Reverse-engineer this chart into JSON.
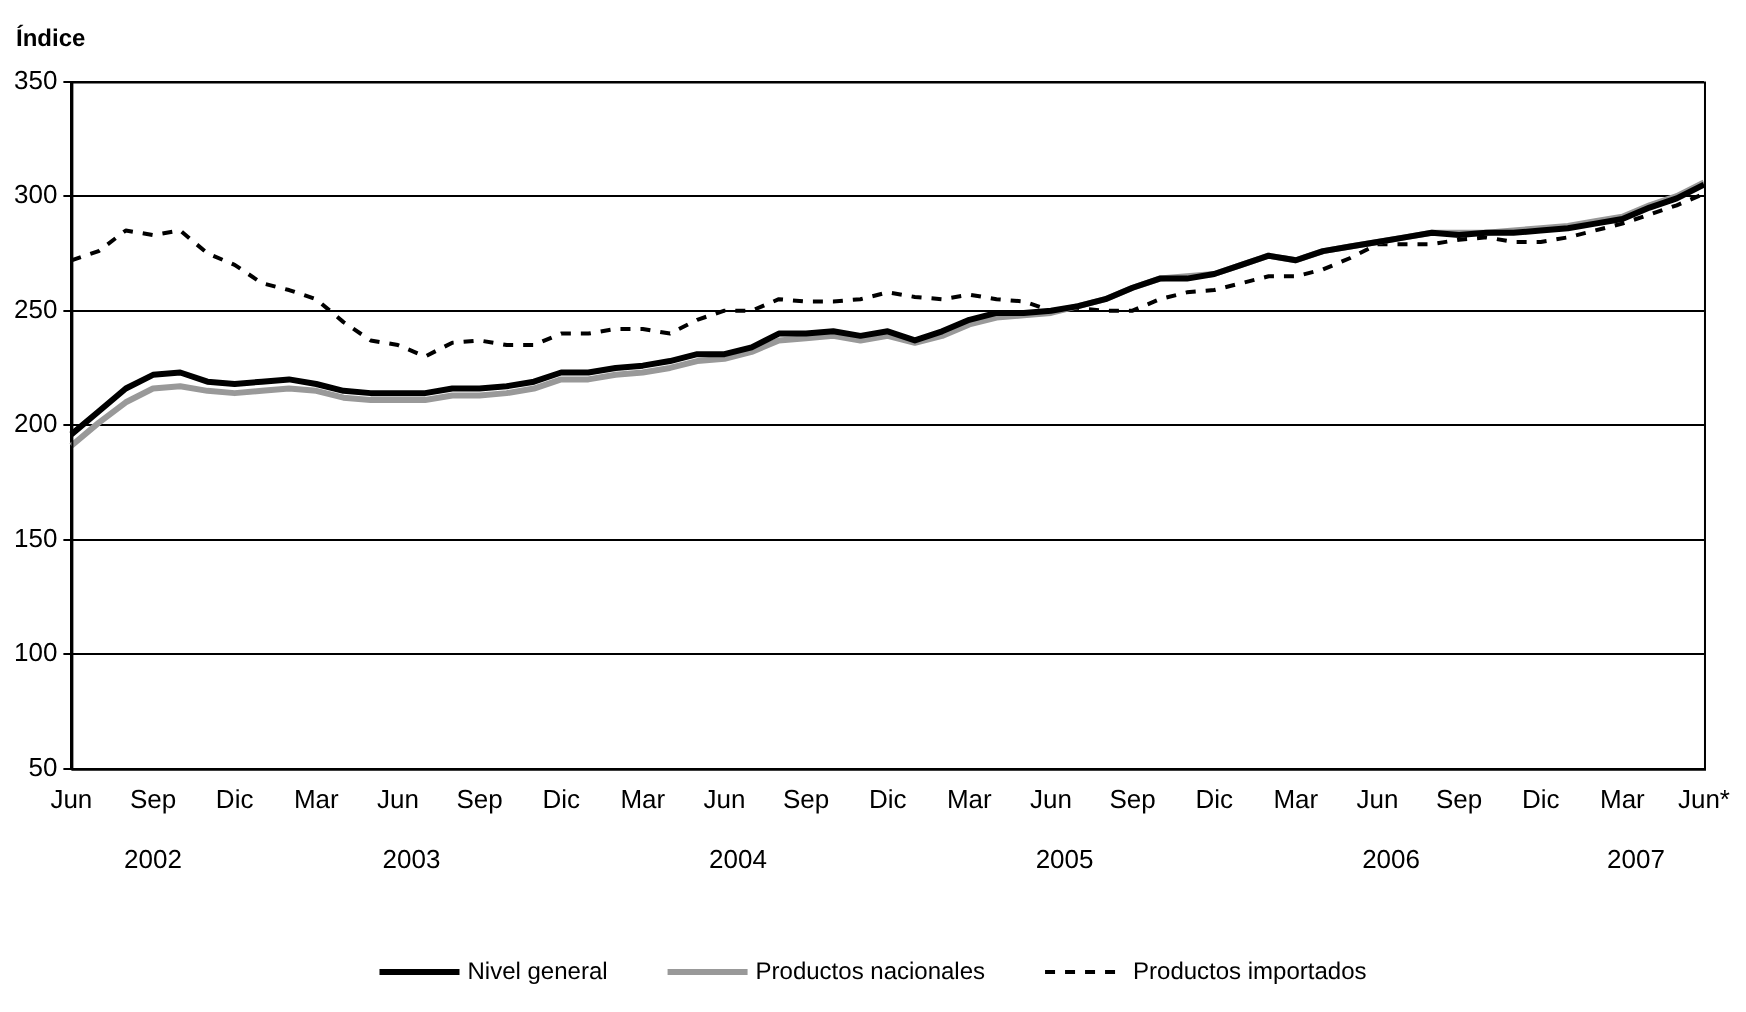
{
  "chart_data": {
    "type": "line",
    "ylabel": "Índice",
    "categories": [
      "Jun",
      null,
      null,
      "Sep",
      null,
      null,
      "Dic",
      null,
      null,
      "Mar",
      null,
      null,
      "Jun",
      null,
      null,
      "Sep",
      null,
      null,
      "Dic",
      null,
      null,
      "Mar",
      null,
      null,
      "Jun",
      null,
      null,
      "Sep",
      null,
      null,
      "Dic",
      null,
      null,
      "Mar",
      null,
      null,
      "Jun",
      null,
      null,
      "Sep",
      null,
      null,
      "Dic",
      null,
      null,
      "Mar",
      null,
      null,
      "Jun",
      null,
      null,
      "Sep",
      null,
      null,
      "Dic",
      null,
      null,
      "Mar",
      null,
      null,
      "Jun*"
    ],
    "annotations": [
      "2002",
      "2003",
      "2004",
      "2005",
      "2006",
      "2007"
    ],
    "ylim": [
      50,
      350
    ],
    "yticks": [
      50,
      100,
      150,
      200,
      250,
      300,
      350
    ],
    "grid": "y",
    "legend": "bottom",
    "marker": "none",
    "series": [
      {
        "name": "Nivel general",
        "color": "#000000",
        "line_style": "solid",
        "values": [
          196,
          206,
          216,
          222,
          223,
          219,
          218,
          219,
          220,
          218,
          215,
          214,
          214,
          214,
          216,
          216,
          217,
          219,
          223,
          223,
          225,
          226,
          228,
          231,
          231,
          234,
          240,
          240,
          241,
          239,
          241,
          237,
          241,
          246,
          249,
          249,
          250,
          252,
          255,
          260,
          264,
          264,
          266,
          270,
          274,
          272,
          276,
          278,
          280,
          282,
          284,
          283,
          284,
          284,
          285,
          286,
          288,
          290,
          295,
          299,
          305
        ]
      },
      {
        "name": "Productos nacionales",
        "color": "#999999",
        "line_style": "solid",
        "values": [
          191,
          201,
          210,
          216,
          217,
          215,
          214,
          215,
          216,
          215,
          212,
          211,
          211,
          211,
          213,
          213,
          214,
          216,
          220,
          220,
          222,
          223,
          225,
          228,
          229,
          232,
          237,
          238,
          239,
          237,
          239,
          236,
          239,
          244,
          247,
          248,
          249,
          252,
          255,
          260,
          264,
          265,
          266,
          270,
          274,
          272,
          276,
          278,
          280,
          282,
          284,
          284,
          284,
          285,
          286,
          287,
          289,
          291,
          296,
          300,
          306
        ]
      },
      {
        "name": "Productos importados",
        "color": "#000000",
        "line_style": "dashed",
        "values": [
          272,
          276,
          285,
          283,
          285,
          275,
          270,
          262,
          259,
          255,
          245,
          237,
          235,
          230,
          236,
          237,
          235,
          235,
          240,
          240,
          242,
          242,
          240,
          246,
          250,
          250,
          255,
          254,
          254,
          255,
          258,
          256,
          255,
          257,
          255,
          254,
          250,
          251,
          250,
          250,
          255,
          258,
          259,
          262,
          265,
          265,
          268,
          273,
          279,
          279,
          279,
          281,
          282,
          280,
          280,
          282,
          285,
          288,
          292,
          296,
          301
        ]
      }
    ]
  }
}
